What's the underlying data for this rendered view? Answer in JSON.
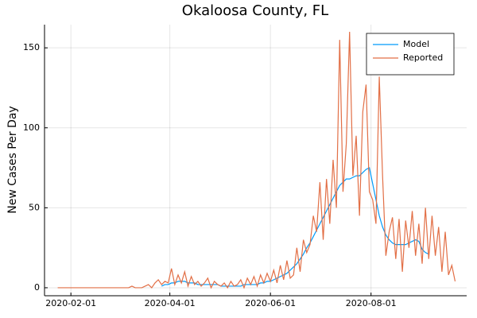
{
  "chart_data": {
    "type": "line",
    "title": "Okaloosa County, FL",
    "y_label": "New Cases Per Day",
    "x": [
      "2020-01-24",
      "2020-03-01",
      "2020-03-03",
      "2020-03-05",
      "2020-03-07",
      "2020-03-09",
      "2020-03-11",
      "2020-03-13",
      "2020-03-15",
      "2020-03-17",
      "2020-03-19",
      "2020-03-21",
      "2020-03-23",
      "2020-03-25",
      "2020-03-27",
      "2020-03-29",
      "2020-03-31",
      "2020-04-02",
      "2020-04-04",
      "2020-04-06",
      "2020-04-08",
      "2020-04-10",
      "2020-04-12",
      "2020-04-14",
      "2020-04-16",
      "2020-04-18",
      "2020-04-20",
      "2020-04-22",
      "2020-04-24",
      "2020-04-26",
      "2020-04-28",
      "2020-04-30",
      "2020-05-02",
      "2020-05-04",
      "2020-05-06",
      "2020-05-08",
      "2020-05-10",
      "2020-05-12",
      "2020-05-14",
      "2020-05-16",
      "2020-05-18",
      "2020-05-20",
      "2020-05-22",
      "2020-05-24",
      "2020-05-26",
      "2020-05-28",
      "2020-05-30",
      "2020-06-01",
      "2020-06-03",
      "2020-06-05",
      "2020-06-07",
      "2020-06-09",
      "2020-06-11",
      "2020-06-13",
      "2020-06-15",
      "2020-06-17",
      "2020-06-19",
      "2020-06-21",
      "2020-06-23",
      "2020-06-25",
      "2020-06-27",
      "2020-06-29",
      "2020-07-01",
      "2020-07-03",
      "2020-07-05",
      "2020-07-07",
      "2020-07-09",
      "2020-07-11",
      "2020-07-13",
      "2020-07-15",
      "2020-07-17",
      "2020-07-19",
      "2020-07-21",
      "2020-07-23",
      "2020-07-25",
      "2020-07-27",
      "2020-07-29",
      "2020-07-31",
      "2020-08-02",
      "2020-08-04",
      "2020-08-06",
      "2020-08-08",
      "2020-08-10",
      "2020-08-12",
      "2020-08-14",
      "2020-08-16",
      "2020-08-18",
      "2020-08-20",
      "2020-08-22",
      "2020-08-24",
      "2020-08-26",
      "2020-08-28",
      "2020-08-30",
      "2020-09-01",
      "2020-09-03",
      "2020-09-05",
      "2020-09-07",
      "2020-09-09",
      "2020-09-11",
      "2020-09-13",
      "2020-09-15",
      "2020-09-17",
      "2020-09-19",
      "2020-09-21"
    ],
    "series": [
      {
        "name": "Model",
        "color": "#009af9",
        "values": [
          null,
          null,
          null,
          null,
          null,
          null,
          null,
          null,
          null,
          null,
          null,
          null,
          null,
          null,
          1,
          2,
          2,
          3,
          3,
          4,
          4,
          4,
          3,
          3,
          3,
          2,
          2,
          2,
          2,
          2,
          2,
          2,
          1,
          1,
          1,
          1,
          1,
          1,
          1,
          2,
          2,
          2,
          2,
          2,
          3,
          3,
          4,
          4,
          5,
          6,
          7,
          8,
          9,
          11,
          13,
          15,
          18,
          21,
          25,
          28,
          32,
          36,
          40,
          44,
          48,
          52,
          56,
          60,
          64,
          66,
          68,
          68,
          69,
          70,
          70,
          72,
          74,
          75,
          65,
          55,
          45,
          38,
          33,
          30,
          28,
          27,
          27,
          27,
          27,
          28,
          29,
          30,
          29,
          24,
          22,
          21,
          null,
          null,
          null,
          null,
          null,
          null,
          null,
          null
        ]
      },
      {
        "name": "Reported",
        "color": "#e26f46",
        "values": [
          0,
          0,
          0,
          0,
          0,
          1,
          0,
          0,
          0,
          1,
          2,
          0,
          3,
          5,
          2,
          4,
          3,
          12,
          2,
          8,
          3,
          10,
          1,
          7,
          2,
          4,
          1,
          3,
          6,
          0,
          4,
          2,
          1,
          3,
          0,
          4,
          1,
          2,
          5,
          0,
          6,
          2,
          7,
          1,
          8,
          3,
          9,
          4,
          11,
          3,
          14,
          5,
          17,
          6,
          8,
          25,
          10,
          30,
          22,
          27,
          45,
          35,
          66,
          30,
          68,
          40,
          80,
          50,
          155,
          60,
          90,
          160,
          70,
          95,
          45,
          110,
          127,
          60,
          55,
          40,
          132,
          70,
          20,
          35,
          44,
          18,
          43,
          10,
          42,
          25,
          48,
          20,
          40,
          15,
          50,
          18,
          45,
          20,
          38,
          10,
          35,
          8,
          14,
          4
        ]
      }
    ],
    "xlim": [
      "2020-01-16",
      "2020-09-28"
    ],
    "xticks": [
      "2020-02-01",
      "2020-04-01",
      "2020-06-01",
      "2020-08-01"
    ],
    "ylim": [
      -5,
      164.5
    ],
    "yticks": [
      0,
      50,
      100,
      150
    ],
    "grid": true,
    "legend_position": "top-right"
  }
}
